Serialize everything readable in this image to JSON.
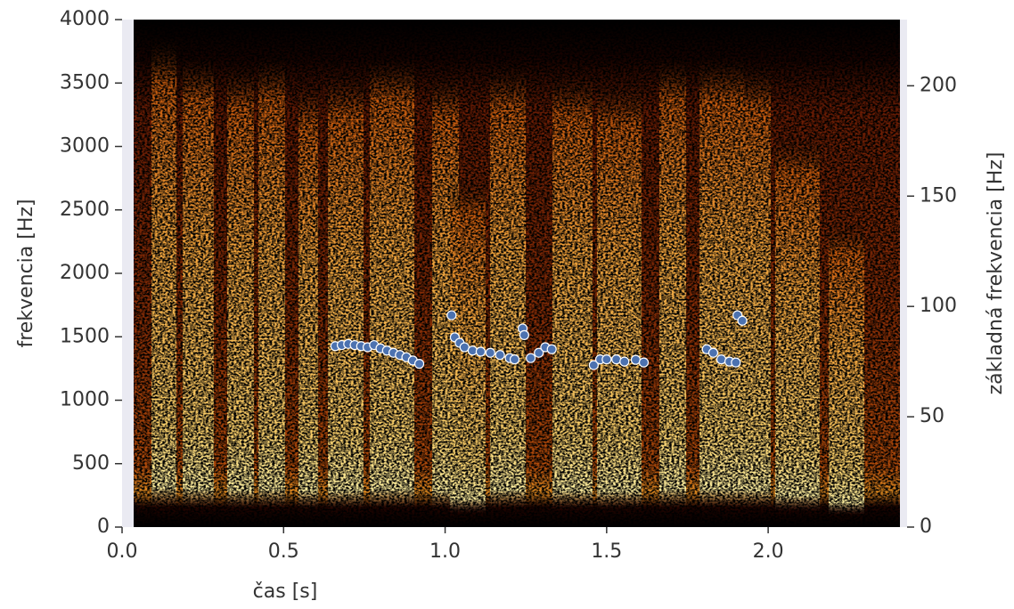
{
  "chart_data": {
    "type": "scatter",
    "xlabel": "čas [s]",
    "ylabel": "frekvencia [Hz]",
    "y2label": "základná frekvencia [Hz]",
    "xlim": [
      0,
      2.43
    ],
    "ylim": [
      0,
      4000
    ],
    "y2lim": [
      0,
      230
    ],
    "xticks": [
      {
        "value": 0,
        "label": "0.0"
      },
      0.5,
      {
        "value": 1,
        "label": "1.0"
      },
      1.5,
      {
        "value": 2,
        "label": "2.0"
      }
    ],
    "yticks": [
      0,
      500,
      1000,
      1500,
      2000,
      2500,
      3000,
      3500,
      4000
    ],
    "y2ticks": [
      0,
      50,
      100,
      150,
      200
    ],
    "axis": "y2",
    "color": "#4c72b0",
    "x": [
      0.66,
      0.68,
      0.7,
      0.72,
      0.74,
      0.76,
      0.78,
      0.8,
      0.82,
      0.84,
      0.86,
      0.88,
      0.9,
      0.92,
      1.02,
      1.03,
      1.045,
      1.06,
      1.085,
      1.11,
      1.14,
      1.17,
      1.2,
      1.215,
      1.24,
      1.245,
      1.265,
      1.29,
      1.31,
      1.33,
      1.46,
      1.48,
      1.5,
      1.53,
      1.555,
      1.59,
      1.615,
      1.81,
      1.83,
      1.855,
      1.88,
      1.9,
      1.905,
      1.92
    ],
    "values": [
      82,
      82.5,
      83,
      82.5,
      82,
      81.5,
      82.5,
      81,
      80,
      79,
      78,
      77,
      75.5,
      74,
      96,
      86,
      83.5,
      81.5,
      80,
      79.5,
      79,
      78,
      76.6,
      76,
      90,
      87,
      76.6,
      79,
      81.5,
      80.6,
      73.4,
      76,
      76,
      76,
      75,
      75.8,
      74.6,
      80.6,
      79,
      76,
      75,
      74.6,
      96,
      93.5
    ]
  }
}
